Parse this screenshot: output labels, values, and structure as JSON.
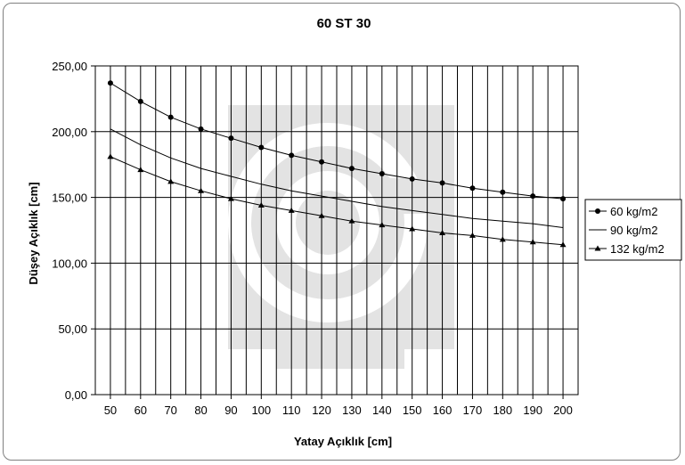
{
  "chart_data": {
    "type": "line",
    "title": "60 ST 30",
    "xlabel": "Yatay Açıklık [cm]",
    "ylabel": "Düşey Açıklık [cm]",
    "xlim": [
      45,
      205
    ],
    "ylim": [
      0,
      250
    ],
    "x_ticks": [
      50,
      60,
      70,
      80,
      90,
      100,
      110,
      120,
      130,
      140,
      150,
      160,
      170,
      180,
      190,
      200
    ],
    "y_ticks": [
      "0,00",
      "50,00",
      "100,00",
      "150,00",
      "200,00",
      "250,00"
    ],
    "x_grid_step": 5,
    "grid": true,
    "legend_position": "right",
    "series": [
      {
        "name": "60 kg/m2",
        "marker": "circle",
        "x": [
          50,
          60,
          70,
          80,
          90,
          100,
          110,
          120,
          130,
          140,
          150,
          160,
          170,
          180,
          190,
          200
        ],
        "values": [
          237,
          223,
          211,
          202,
          195,
          188,
          182,
          177,
          172,
          168,
          164,
          161,
          157,
          154,
          151,
          149
        ]
      },
      {
        "name": "90 kg/m2",
        "marker": "none",
        "x": [
          50,
          60,
          70,
          80,
          90,
          100,
          110,
          120,
          130,
          140,
          150,
          160,
          170,
          180,
          190,
          200
        ],
        "values": [
          202,
          190,
          180,
          172,
          166,
          160,
          155,
          151,
          147,
          143,
          140,
          137,
          134,
          132,
          130,
          127
        ]
      },
      {
        "name": "132 kg/m2",
        "marker": "triangle",
        "x": [
          50,
          60,
          70,
          80,
          90,
          100,
          110,
          120,
          130,
          140,
          150,
          160,
          170,
          180,
          190,
          200
        ],
        "values": [
          181,
          171,
          162,
          155,
          149,
          144,
          140,
          136,
          132,
          129,
          126,
          123,
          121,
          118,
          116,
          114
        ]
      }
    ],
    "colors": {
      "line": "#000000",
      "grid": "#000000",
      "watermark": "#e3e3e3"
    }
  }
}
